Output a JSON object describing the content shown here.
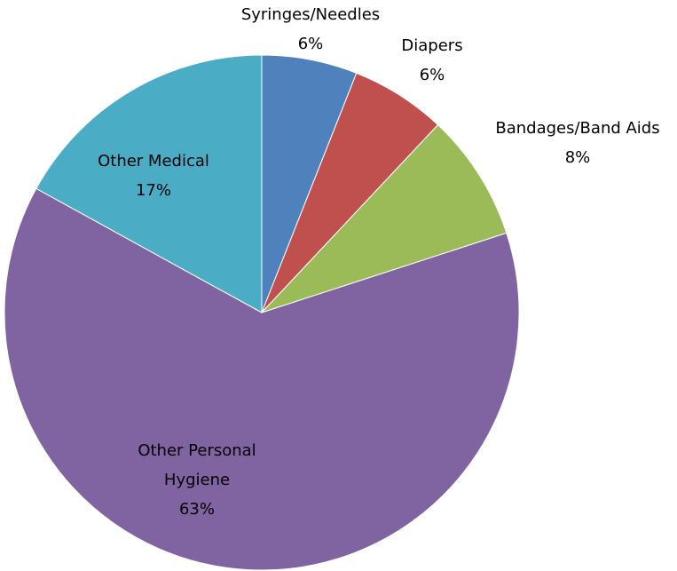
{
  "chart_data": {
    "type": "pie",
    "categories": [
      "Syringes/Needles",
      "Diapers",
      "Bandages/Band Aids",
      "Other Personal Hygiene",
      "Other Medical"
    ],
    "values": [
      6,
      6,
      8,
      63,
      17
    ],
    "value_labels": [
      "6%",
      "6%",
      "8%",
      "63%",
      "17%"
    ],
    "colors": [
      "#4f81bd",
      "#c0504d",
      "#9bbb59",
      "#8064a2",
      "#4bacc6"
    ]
  }
}
